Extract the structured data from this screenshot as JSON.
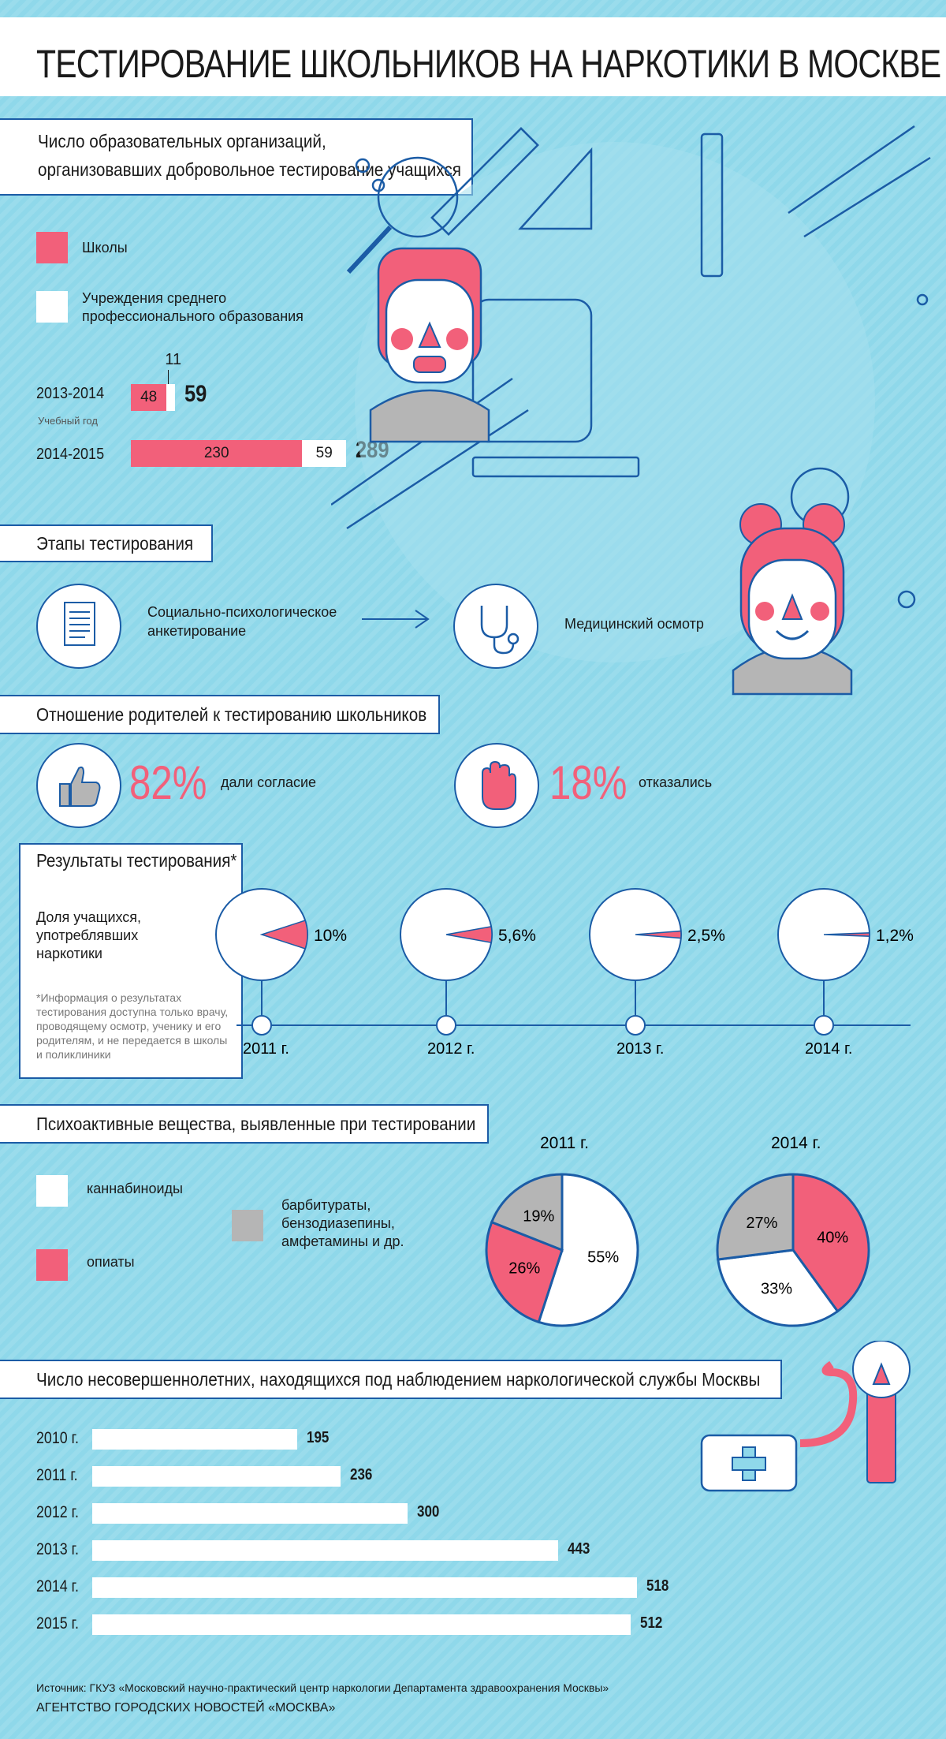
{
  "title": "ТЕСТИРОВАНИЕ ШКОЛЬНИКОВ НА НАРКОТИКИ В МОСКВЕ",
  "orgs": {
    "heading_line1": "Число образовательных организаций,",
    "heading_line2": "организовавших добровольное тестирование учащихся",
    "legend_schools": "Школы",
    "legend_college_line1": "Учреждения среднего",
    "legend_college_line2": "профессионального образования",
    "axis_note": "Учебный год",
    "colors": {
      "schools": "#f2607a",
      "college": "#ffffff"
    }
  },
  "stages": {
    "heading": "Этапы тестирования",
    "step1_line1": "Социально-психологическое",
    "step1_line2": "анкетирование",
    "step2": "Медицинский осмотр",
    "icons": [
      "document-icon",
      "stethoscope-icon"
    ]
  },
  "parents": {
    "heading": "Отношение родителей к тестированию школьников",
    "agree_pct": "82%",
    "agree_label": "дали согласие",
    "refuse_pct": "18%",
    "refuse_label": "отказались",
    "icons": [
      "thumbs-up-icon",
      "stop-hand-icon"
    ]
  },
  "results": {
    "heading": "Результаты тестирования*",
    "desc_line1": "Доля учащихся,",
    "desc_line2": "употреблявших",
    "desc_line3": "наркотики",
    "note_lines": [
      "*Информация о результатах",
      "тестирования доступна только врачу,",
      "проводящему осмотр, ученику и его",
      "родителям, и не передается в школы",
      "и поликлиники"
    ]
  },
  "substances": {
    "heading": "Психоактивные вещества, выявленные при тестировании",
    "legend_cannabinoids": "каннабиноиды",
    "legend_opiates": "опиаты",
    "legend_other_line1": "барбитураты,",
    "legend_other_line2": "бензодиазепины,",
    "legend_other_line3": "амфетамины и др.",
    "colors": {
      "cannabinoids": "#ffffff",
      "opiates": "#f2607a",
      "other": "#b5b5b5"
    }
  },
  "minors": {
    "heading": "Число несовершеннолетних, находящихся под наблюдением наркологической службы Москвы"
  },
  "footer": {
    "source": "Источник: ГКУЗ «Московский научно-практический центр наркологии Департамента здравоохранения Москвы»",
    "agency": "АГЕНТСТВО ГОРОДСКИХ НОВОСТЕЙ «МОСКВА»"
  },
  "chart_data": [
    {
      "type": "bar",
      "stacked": true,
      "categories": [
        "2013-2014",
        "2014-2015"
      ],
      "series": [
        {
          "name": "Школы",
          "values": [
            48,
            230
          ]
        },
        {
          "name": "Учреждения среднего профессионального образования",
          "values": [
            11,
            59
          ]
        }
      ],
      "totals": [
        59,
        289
      ]
    },
    {
      "type": "pie",
      "categories": [
        "2011 г.",
        "2012 г.",
        "2013 г.",
        "2014 г."
      ],
      "values": [
        10,
        5.6,
        2.5,
        1.2
      ],
      "value_labels": [
        "10%",
        "5,6%",
        "2,5%",
        "1,2%"
      ]
    },
    {
      "type": "pie",
      "title": "2011 г.",
      "categories": [
        "каннабиноиды",
        "опиаты",
        "барбитураты, бензодиазепины, амфетамины и др."
      ],
      "values": [
        55,
        26,
        19
      ],
      "value_labels": [
        "55%",
        "26%",
        "19%"
      ]
    },
    {
      "type": "pie",
      "title": "2014 г.",
      "categories": [
        "опиаты",
        "каннабиноиды",
        "барбитураты, бензодиазепины, амфетамины и др."
      ],
      "values": [
        40,
        33,
        27
      ],
      "value_labels": [
        "40%",
        "33%",
        "27%"
      ]
    },
    {
      "type": "bar",
      "orientation": "horizontal",
      "categories": [
        "2010 г.",
        "2011 г.",
        "2012 г.",
        "2013 г.",
        "2014 г.",
        "2015 г."
      ],
      "values": [
        195,
        236,
        300,
        443,
        518,
        512
      ]
    }
  ]
}
